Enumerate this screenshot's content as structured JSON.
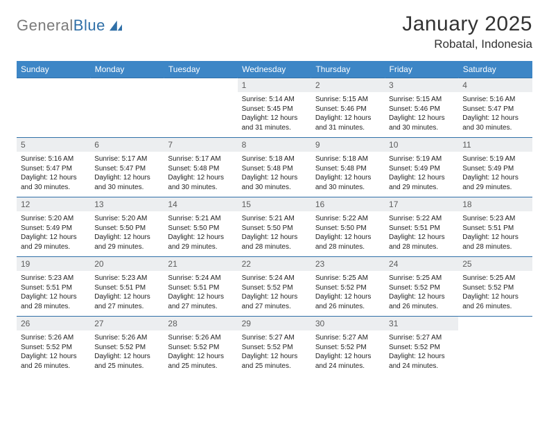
{
  "brand": {
    "partA": "General",
    "partB": "Blue"
  },
  "title": "January 2025",
  "location": "Robatal, Indonesia",
  "colors": {
    "header_bg": "#3d86c6",
    "header_text": "#ffffff",
    "rule": "#2f6fa7",
    "daynum_bg": "#eceef0",
    "daynum_text": "#5b5b5b",
    "body_text": "#222222",
    "page_bg": "#ffffff"
  },
  "typography": {
    "title_fontsize": 30,
    "location_fontsize": 17,
    "weekday_fontsize": 12,
    "daynum_fontsize": 12,
    "body_fontsize": 10
  },
  "weekdays": [
    "Sunday",
    "Monday",
    "Tuesday",
    "Wednesday",
    "Thursday",
    "Friday",
    "Saturday"
  ],
  "leading_blanks": 3,
  "days": [
    {
      "n": 1,
      "sunrise": "5:14 AM",
      "sunset": "5:45 PM",
      "daylight": "12 hours and 31 minutes."
    },
    {
      "n": 2,
      "sunrise": "5:15 AM",
      "sunset": "5:46 PM",
      "daylight": "12 hours and 31 minutes."
    },
    {
      "n": 3,
      "sunrise": "5:15 AM",
      "sunset": "5:46 PM",
      "daylight": "12 hours and 30 minutes."
    },
    {
      "n": 4,
      "sunrise": "5:16 AM",
      "sunset": "5:47 PM",
      "daylight": "12 hours and 30 minutes."
    },
    {
      "n": 5,
      "sunrise": "5:16 AM",
      "sunset": "5:47 PM",
      "daylight": "12 hours and 30 minutes."
    },
    {
      "n": 6,
      "sunrise": "5:17 AM",
      "sunset": "5:47 PM",
      "daylight": "12 hours and 30 minutes."
    },
    {
      "n": 7,
      "sunrise": "5:17 AM",
      "sunset": "5:48 PM",
      "daylight": "12 hours and 30 minutes."
    },
    {
      "n": 8,
      "sunrise": "5:18 AM",
      "sunset": "5:48 PM",
      "daylight": "12 hours and 30 minutes."
    },
    {
      "n": 9,
      "sunrise": "5:18 AM",
      "sunset": "5:48 PM",
      "daylight": "12 hours and 30 minutes."
    },
    {
      "n": 10,
      "sunrise": "5:19 AM",
      "sunset": "5:49 PM",
      "daylight": "12 hours and 29 minutes."
    },
    {
      "n": 11,
      "sunrise": "5:19 AM",
      "sunset": "5:49 PM",
      "daylight": "12 hours and 29 minutes."
    },
    {
      "n": 12,
      "sunrise": "5:20 AM",
      "sunset": "5:49 PM",
      "daylight": "12 hours and 29 minutes."
    },
    {
      "n": 13,
      "sunrise": "5:20 AM",
      "sunset": "5:50 PM",
      "daylight": "12 hours and 29 minutes."
    },
    {
      "n": 14,
      "sunrise": "5:21 AM",
      "sunset": "5:50 PM",
      "daylight": "12 hours and 29 minutes."
    },
    {
      "n": 15,
      "sunrise": "5:21 AM",
      "sunset": "5:50 PM",
      "daylight": "12 hours and 28 minutes."
    },
    {
      "n": 16,
      "sunrise": "5:22 AM",
      "sunset": "5:50 PM",
      "daylight": "12 hours and 28 minutes."
    },
    {
      "n": 17,
      "sunrise": "5:22 AM",
      "sunset": "5:51 PM",
      "daylight": "12 hours and 28 minutes."
    },
    {
      "n": 18,
      "sunrise": "5:23 AM",
      "sunset": "5:51 PM",
      "daylight": "12 hours and 28 minutes."
    },
    {
      "n": 19,
      "sunrise": "5:23 AM",
      "sunset": "5:51 PM",
      "daylight": "12 hours and 28 minutes."
    },
    {
      "n": 20,
      "sunrise": "5:23 AM",
      "sunset": "5:51 PM",
      "daylight": "12 hours and 27 minutes."
    },
    {
      "n": 21,
      "sunrise": "5:24 AM",
      "sunset": "5:51 PM",
      "daylight": "12 hours and 27 minutes."
    },
    {
      "n": 22,
      "sunrise": "5:24 AM",
      "sunset": "5:52 PM",
      "daylight": "12 hours and 27 minutes."
    },
    {
      "n": 23,
      "sunrise": "5:25 AM",
      "sunset": "5:52 PM",
      "daylight": "12 hours and 26 minutes."
    },
    {
      "n": 24,
      "sunrise": "5:25 AM",
      "sunset": "5:52 PM",
      "daylight": "12 hours and 26 minutes."
    },
    {
      "n": 25,
      "sunrise": "5:25 AM",
      "sunset": "5:52 PM",
      "daylight": "12 hours and 26 minutes."
    },
    {
      "n": 26,
      "sunrise": "5:26 AM",
      "sunset": "5:52 PM",
      "daylight": "12 hours and 26 minutes."
    },
    {
      "n": 27,
      "sunrise": "5:26 AM",
      "sunset": "5:52 PM",
      "daylight": "12 hours and 25 minutes."
    },
    {
      "n": 28,
      "sunrise": "5:26 AM",
      "sunset": "5:52 PM",
      "daylight": "12 hours and 25 minutes."
    },
    {
      "n": 29,
      "sunrise": "5:27 AM",
      "sunset": "5:52 PM",
      "daylight": "12 hours and 25 minutes."
    },
    {
      "n": 30,
      "sunrise": "5:27 AM",
      "sunset": "5:52 PM",
      "daylight": "12 hours and 24 minutes."
    },
    {
      "n": 31,
      "sunrise": "5:27 AM",
      "sunset": "5:52 PM",
      "daylight": "12 hours and 24 minutes."
    }
  ],
  "labels": {
    "sunrise": "Sunrise:",
    "sunset": "Sunset:",
    "daylight": "Daylight:"
  }
}
